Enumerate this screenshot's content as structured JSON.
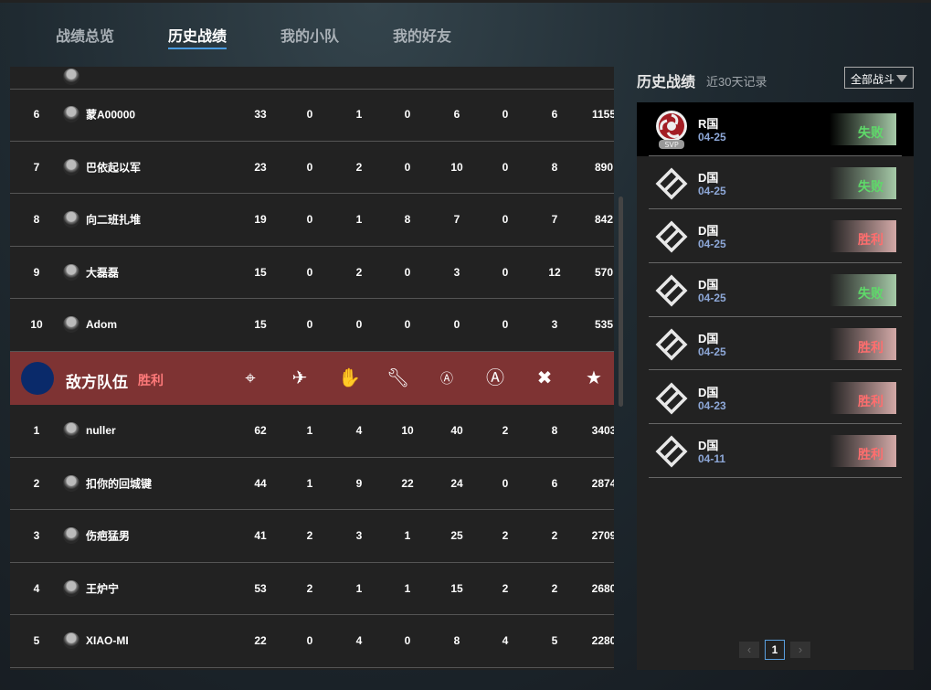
{
  "tabs": [
    {
      "label": "战绩总览"
    },
    {
      "label": "历史战绩",
      "active": true
    },
    {
      "label": "我的小队"
    },
    {
      "label": "我的好友"
    }
  ],
  "own_team": [
    {
      "rank": "6",
      "name": "蒙A00000",
      "stats": [
        "33",
        "0",
        "1",
        "0",
        "6",
        "0",
        "6",
        "1155"
      ]
    },
    {
      "rank": "7",
      "name": "巴依起以军",
      "stats": [
        "23",
        "0",
        "2",
        "0",
        "10",
        "0",
        "8",
        "890"
      ]
    },
    {
      "rank": "8",
      "name": "向二班扎堆",
      "stats": [
        "19",
        "0",
        "1",
        "8",
        "7",
        "0",
        "7",
        "842"
      ]
    },
    {
      "rank": "9",
      "name": "大磊磊",
      "stats": [
        "15",
        "0",
        "2",
        "0",
        "3",
        "0",
        "12",
        "570"
      ]
    },
    {
      "rank": "10",
      "name": "Adom",
      "stats": [
        "15",
        "0",
        "0",
        "0",
        "0",
        "0",
        "3",
        "535"
      ]
    }
  ],
  "enemy_header": {
    "title": "敌方队伍",
    "result": "胜利",
    "logo_color": "#0a2a6a",
    "icons": [
      "crosshair-icon",
      "airstrike-icon",
      "hand-icon",
      "wrench-icon",
      "shield-a-icon",
      "circle-a-icon",
      "cross-icon",
      "star-icon"
    ]
  },
  "enemy_team": [
    {
      "rank": "1",
      "name": "nuller",
      "stats": [
        "62",
        "1",
        "4",
        "10",
        "40",
        "2",
        "8",
        "3403"
      ]
    },
    {
      "rank": "2",
      "name": "扣你的回城键",
      "stats": [
        "44",
        "1",
        "9",
        "22",
        "24",
        "0",
        "6",
        "2874"
      ]
    },
    {
      "rank": "3",
      "name": "伤疤猛男",
      "stats": [
        "41",
        "2",
        "3",
        "1",
        "25",
        "2",
        "2",
        "2709"
      ]
    },
    {
      "rank": "4",
      "name": "王炉宁",
      "stats": [
        "53",
        "2",
        "1",
        "1",
        "15",
        "2",
        "2",
        "2680"
      ]
    },
    {
      "rank": "5",
      "name": "XIAO-MI",
      "stats": [
        "22",
        "0",
        "4",
        "0",
        "8",
        "4",
        "5",
        "2280"
      ]
    }
  ],
  "history": {
    "title": "历史战绩",
    "subtitle": "近30天记录",
    "filter": "全部战斗",
    "items": [
      {
        "name": "R国",
        "date": "04-25",
        "result": "失败",
        "type": "lose",
        "emblem": "r-emblem-svp",
        "badge": "SVP",
        "selected": true
      },
      {
        "name": "D国",
        "date": "04-25",
        "result": "失败",
        "type": "lose",
        "emblem": "d-emblem"
      },
      {
        "name": "D国",
        "date": "04-25",
        "result": "胜利",
        "type": "win",
        "emblem": "d-emblem"
      },
      {
        "name": "D国",
        "date": "04-25",
        "result": "失败",
        "type": "lose",
        "emblem": "d-emblem"
      },
      {
        "name": "D国",
        "date": "04-25",
        "result": "胜利",
        "type": "win",
        "emblem": "d-emblem"
      },
      {
        "name": "D国",
        "date": "04-23",
        "result": "胜利",
        "type": "win",
        "emblem": "d-emblem"
      },
      {
        "name": "D国",
        "date": "04-11",
        "result": "胜利",
        "type": "win",
        "emblem": "d-emblem"
      }
    ],
    "pager": {
      "prev": "‹",
      "current": "1",
      "next": "›"
    }
  },
  "colors": {
    "win": "#ff6e6e",
    "lose": "#5fd96a",
    "accent": "#4a9be0",
    "enemy_bar": "#7e3333"
  }
}
